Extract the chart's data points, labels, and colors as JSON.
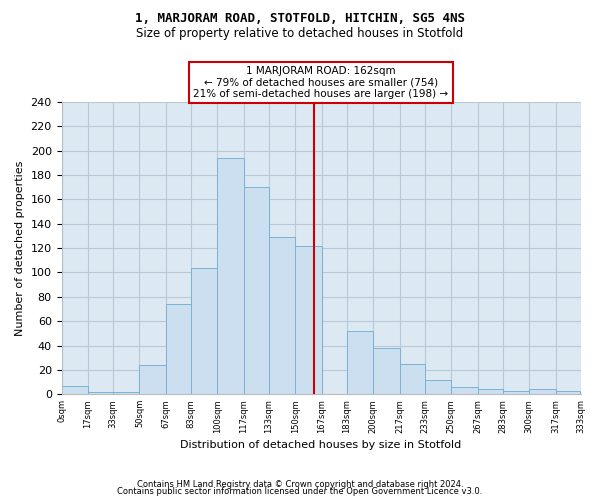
{
  "title": "1, MARJORAM ROAD, STOTFOLD, HITCHIN, SG5 4NS",
  "subtitle": "Size of property relative to detached houses in Stotfold",
  "xlabel": "Distribution of detached houses by size in Stotfold",
  "ylabel": "Number of detached properties",
  "bar_color": "#ccdff0",
  "bar_edge_color": "#7ab3d3",
  "background_color": "#ffffff",
  "axes_bg_color": "#dce8f2",
  "grid_color": "#b8c8d8",
  "bin_edges": [
    0,
    17,
    33,
    50,
    67,
    83,
    100,
    117,
    133,
    150,
    167,
    183,
    200,
    217,
    233,
    250,
    267,
    283,
    300,
    317,
    333
  ],
  "bin_labels": [
    "0sqm",
    "17sqm",
    "33sqm",
    "50sqm",
    "67sqm",
    "83sqm",
    "100sqm",
    "117sqm",
    "133sqm",
    "150sqm",
    "167sqm",
    "183sqm",
    "200sqm",
    "217sqm",
    "233sqm",
    "250sqm",
    "267sqm",
    "283sqm",
    "300sqm",
    "317sqm",
    "333sqm"
  ],
  "counts": [
    7,
    2,
    2,
    24,
    74,
    104,
    194,
    170,
    129,
    122,
    0,
    52,
    38,
    25,
    12,
    6,
    4,
    3,
    4,
    3
  ],
  "property_value": 162,
  "vline_color": "#cc0000",
  "annotation_title": "1 MARJORAM ROAD: 162sqm",
  "annotation_line1": "← 79% of detached houses are smaller (754)",
  "annotation_line2": "21% of semi-detached houses are larger (198) →",
  "annotation_box_color": "#ffffff",
  "annotation_box_edge": "#cc0000",
  "footnote1": "Contains HM Land Registry data © Crown copyright and database right 2024.",
  "footnote2": "Contains public sector information licensed under the Open Government Licence v3.0.",
  "ylim": [
    0,
    240
  ],
  "yticks": [
    0,
    20,
    40,
    60,
    80,
    100,
    120,
    140,
    160,
    180,
    200,
    220,
    240
  ]
}
